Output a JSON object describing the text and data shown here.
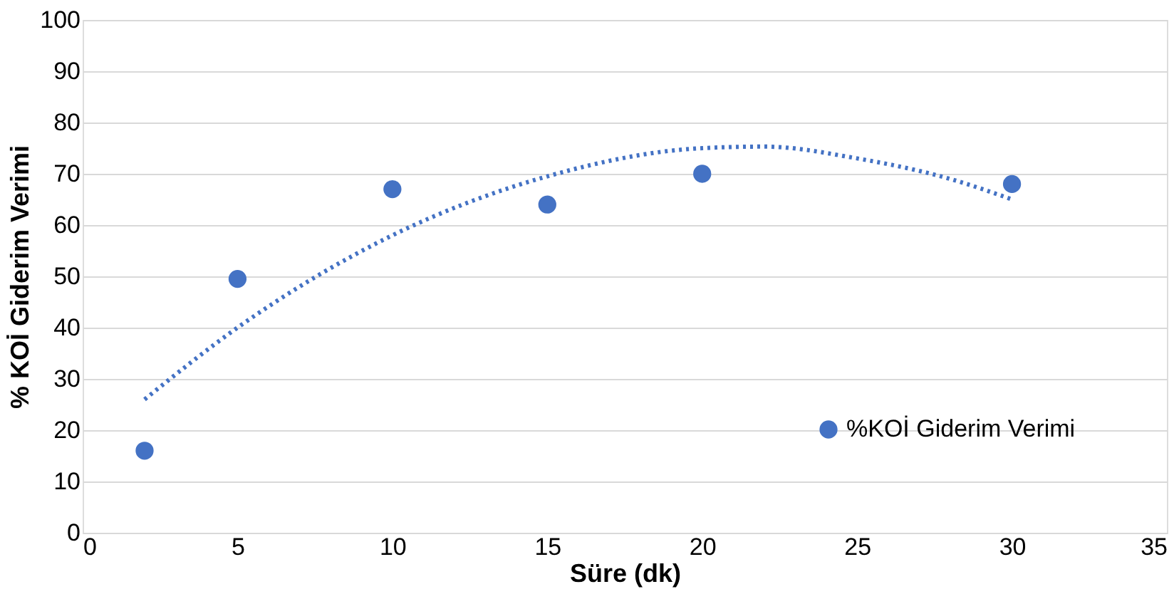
{
  "chart_data": {
    "type": "scatter",
    "xlabel": "Süre (dk)",
    "ylabel": "% KOİ Giderim Verimi",
    "xlim": [
      0,
      35
    ],
    "xticks": [
      0,
      5,
      10,
      15,
      20,
      25,
      30,
      35
    ],
    "ylim": [
      0,
      100
    ],
    "yticks": [
      0,
      10,
      20,
      30,
      40,
      50,
      60,
      70,
      80,
      90,
      100
    ],
    "grid": "y",
    "legend": "bottom right",
    "series": [
      {
        "name": "%KOİ Giderim Verimi",
        "marker": "circle",
        "color": "#4472c4",
        "x": [
          2,
          5,
          10,
          15,
          20,
          30
        ],
        "values": [
          16,
          49.5,
          67,
          64,
          70,
          68
        ]
      },
      {
        "type": "line",
        "line_style": "dotted",
        "marker": "none",
        "color": "#4472c4",
        "x": [
          2,
          5,
          10,
          15,
          20,
          22,
          25,
          28,
          30
        ],
        "values": [
          26,
          40,
          58,
          69.5,
          75,
          75.3,
          73,
          69,
          65
        ]
      }
    ]
  }
}
